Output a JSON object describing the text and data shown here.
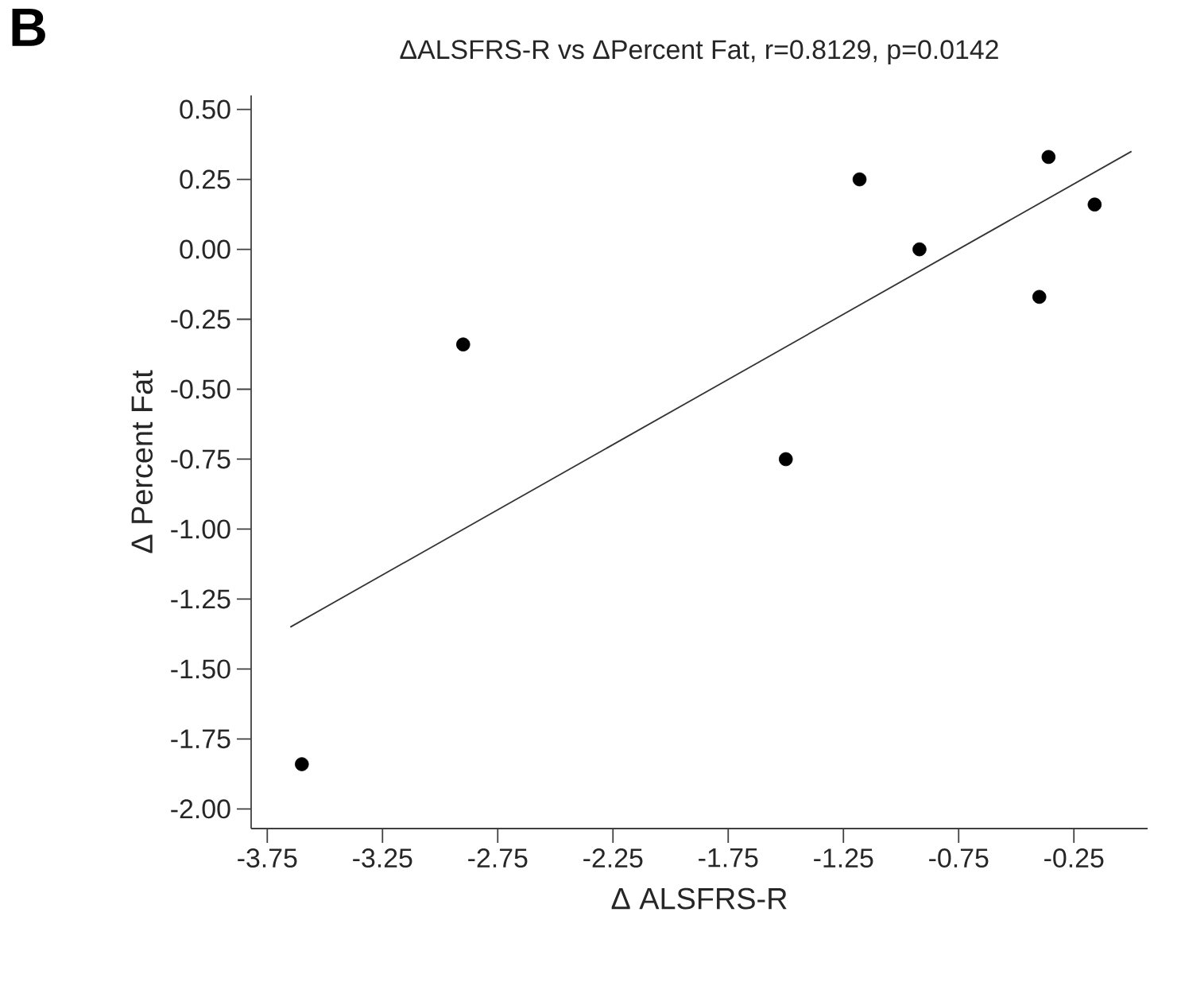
{
  "chart_data": {
    "type": "scatter",
    "title": "ΔALSFRS-R vs ΔPercent Fat, r=0.8129, p=0.0142",
    "xlabel": "Δ ALSFRS-R",
    "ylabel": "Δ Percent Fat",
    "annotations": [
      "B"
    ],
    "x": [
      -3.6,
      -2.9,
      -1.5,
      -1.18,
      -0.92,
      -0.4,
      -0.36,
      -0.16
    ],
    "series": [
      {
        "color": "#000000",
        "marker": "circle",
        "values": [
          -1.84,
          -0.34,
          -0.75,
          0.25,
          0.0,
          -0.17,
          0.33,
          0.16
        ]
      },
      {
        "type": "line",
        "color": "#333333",
        "marker": "none",
        "x": [
          -3.65,
          0.0
        ],
        "values": [
          -1.35,
          0.35
        ]
      }
    ],
    "xlim": [
      -3.82,
      0.07
    ],
    "ylim": [
      -2.07,
      0.55
    ],
    "xticks": [
      -3.75,
      -3.25,
      -2.75,
      -2.25,
      -1.75,
      -1.25,
      -0.75,
      -0.25
    ],
    "yticks": [
      {
        "value": 0.5,
        "label": "0.50"
      },
      0.25,
      {
        "value": 0,
        "label": "0.00"
      },
      -0.25,
      {
        "value": -0.5,
        "label": "-0.50"
      },
      -0.75,
      {
        "value": -1,
        "label": "-1.00"
      },
      -1.25,
      {
        "value": -1.5,
        "label": "-1.50"
      },
      -1.75,
      {
        "value": -2,
        "label": "-2.00"
      }
    ],
    "grid": false
  }
}
